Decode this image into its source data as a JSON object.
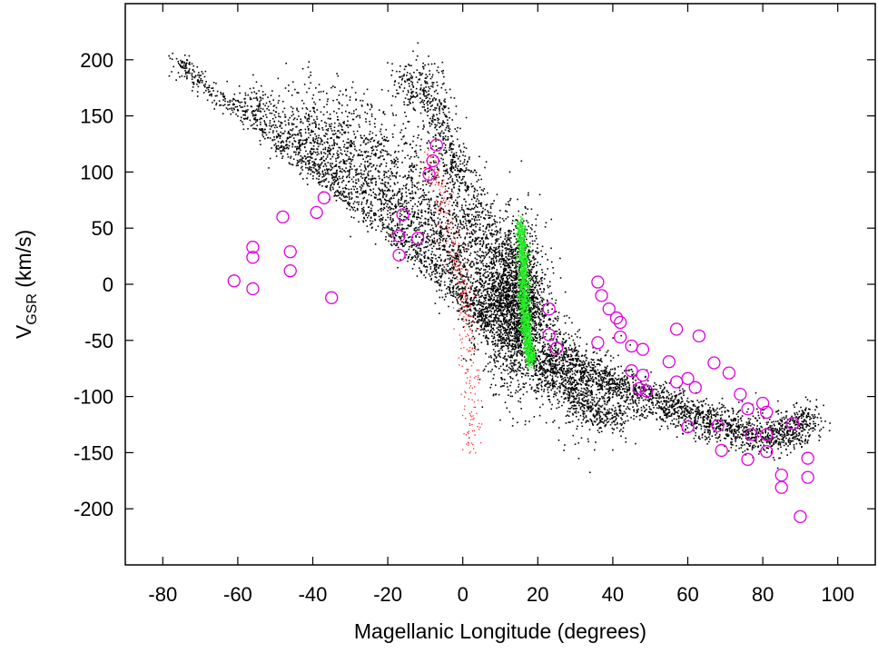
{
  "chart_data": {
    "type": "scatter",
    "title": "",
    "xlabel": "Magellanic Longitude (degrees)",
    "ylabel": {
      "main": "V",
      "sub": "GSR",
      "unit": " (km/s)"
    },
    "xlim": [
      -90,
      110
    ],
    "ylim": [
      -250,
      250
    ],
    "xticks": [
      -80,
      -60,
      -40,
      -20,
      0,
      20,
      40,
      60,
      80,
      100
    ],
    "yticks": [
      -200,
      -150,
      -100,
      -50,
      0,
      50,
      100,
      150,
      200
    ],
    "grid": false,
    "legend": "none",
    "colors": {
      "simulation": "#000000",
      "stream_red": "#ff2222",
      "lmc_green": "#22ee22",
      "observed": "#e000e0"
    },
    "observed_points": [
      [
        -61,
        3
      ],
      [
        -56,
        -4
      ],
      [
        -56,
        24
      ],
      [
        -56,
        33
      ],
      [
        -48,
        60
      ],
      [
        -46,
        12
      ],
      [
        -46,
        29
      ],
      [
        -39,
        64
      ],
      [
        -37,
        77
      ],
      [
        -35,
        -12
      ],
      [
        -17,
        26
      ],
      [
        -17,
        43
      ],
      [
        -16,
        62
      ],
      [
        -12,
        41
      ],
      [
        -9,
        98
      ],
      [
        -8,
        110
      ],
      [
        -7,
        124
      ],
      [
        23,
        -22
      ],
      [
        23,
        -45
      ],
      [
        25,
        -57
      ],
      [
        36,
        -52
      ],
      [
        36,
        2
      ],
      [
        37,
        -10
      ],
      [
        39,
        -22
      ],
      [
        41,
        -30
      ],
      [
        42,
        -34
      ],
      [
        42,
        -47
      ],
      [
        45,
        -55
      ],
      [
        45,
        -77
      ],
      [
        47,
        -93
      ],
      [
        48,
        -81
      ],
      [
        48,
        -58
      ],
      [
        49,
        -95
      ],
      [
        55,
        -69
      ],
      [
        57,
        -40
      ],
      [
        57,
        -87
      ],
      [
        60,
        -84
      ],
      [
        60,
        -127
      ],
      [
        62,
        -92
      ],
      [
        63,
        -46
      ],
      [
        67,
        -70
      ],
      [
        68,
        -126
      ],
      [
        69,
        -148
      ],
      [
        71,
        -79
      ],
      [
        74,
        -98
      ],
      [
        76,
        -111
      ],
      [
        76,
        -156
      ],
      [
        77,
        -134
      ],
      [
        80,
        -106
      ],
      [
        81,
        -114
      ],
      [
        81,
        -134
      ],
      [
        81,
        -149
      ],
      [
        85,
        -170
      ],
      [
        85,
        -181
      ],
      [
        88,
        -124
      ],
      [
        90,
        -207
      ],
      [
        92,
        -155
      ],
      [
        92,
        -172
      ]
    ]
  }
}
